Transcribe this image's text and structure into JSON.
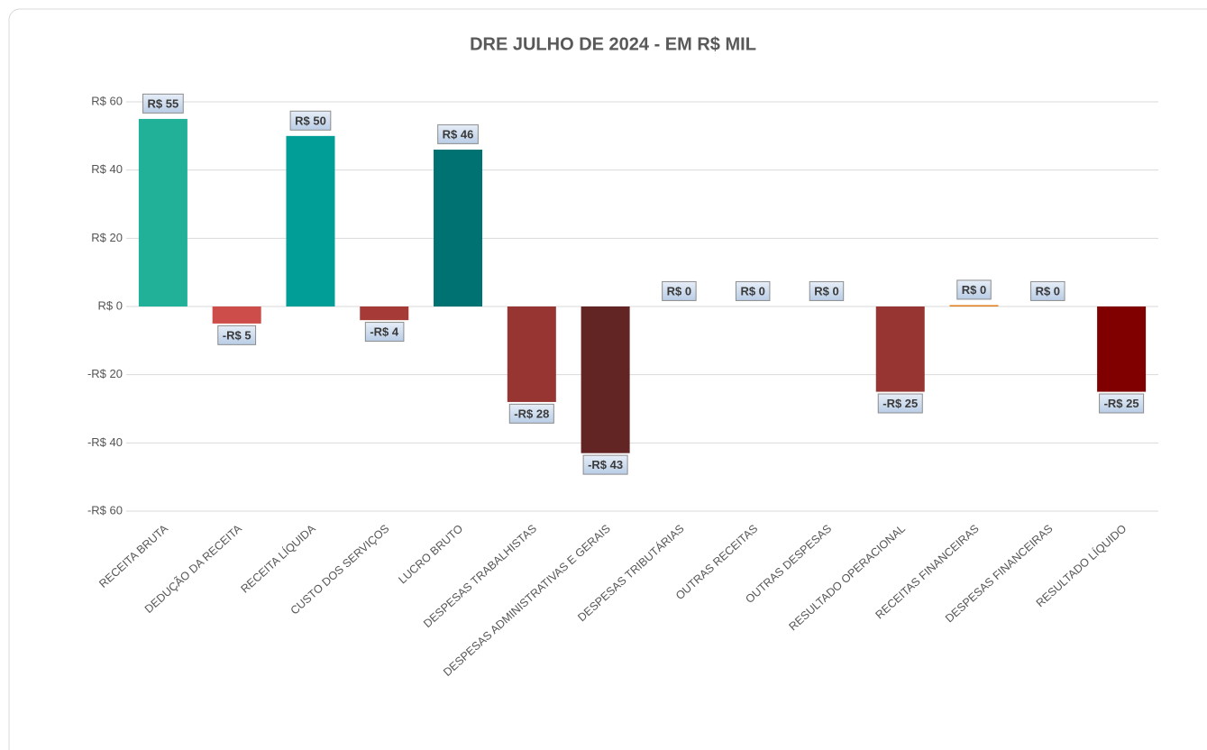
{
  "chart_data": {
    "type": "bar",
    "title": "DRE JULHO DE 2024 - EM R$ MIL",
    "categories": [
      "RECEITA BRUTA",
      "DEDUÇÃO DA RECEITA",
      "RECEITA LÍQUIDA",
      "CUSTO DOS SERVIÇOS",
      "LUCRO BRUTO",
      "DESPESAS TRABALHISTAS",
      "DESPESAS ADMINISTRATIVAS E GERAIS",
      "DESPESAS TRIBUTÁRIAS",
      "OUTRAS RECEITAS",
      "OUTRAS DESPESAS",
      "RESULTADO OPERACIONAL",
      "RECEITAS FINANCEIRAS",
      "DESPESAS FINANCEIRAS",
      "RESULTADO LÍQUIDO"
    ],
    "values": [
      55,
      -5,
      50,
      -4,
      46,
      -28,
      -43,
      0,
      0,
      0,
      -25,
      0.4,
      0,
      -25
    ],
    "value_labels": [
      "R$ 55",
      "-R$ 5",
      "R$ 50",
      "-R$ 4",
      "R$ 46",
      "-R$ 28",
      "-R$ 43",
      "R$ 0",
      "R$ 0",
      "R$ 0",
      "-R$ 25",
      "R$ 0",
      "R$ 0",
      "-R$ 25"
    ],
    "colors": [
      "#21b199",
      "#cc4d4a",
      "#009e97",
      "#a63a36",
      "#007272",
      "#963532",
      "#632523",
      "#963532",
      "#963532",
      "#963532",
      "#963532",
      "#e07b1a",
      "#963532",
      "#800000"
    ],
    "ylim": [
      -60,
      60
    ],
    "yticks": [
      {
        "value": -60,
        "label": "-R$ 60"
      },
      {
        "value": -40,
        "label": "-R$ 40"
      },
      {
        "value": -20,
        "label": "-R$ 20"
      },
      {
        "value": 0,
        "label": "R$ 0"
      },
      {
        "value": 20,
        "label": "R$ 20"
      },
      {
        "value": 40,
        "label": "R$ 40"
      },
      {
        "value": 60,
        "label": "R$ 60"
      }
    ],
    "grid": true
  }
}
